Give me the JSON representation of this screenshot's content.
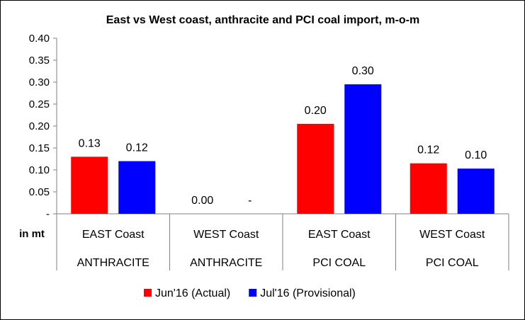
{
  "chart_data": {
    "type": "bar",
    "title": "East vs West coast, anthracite and PCI coal import, m-o-m",
    "ylabel": "in mt",
    "ylim": [
      0,
      0.4
    ],
    "yticks": [
      {
        "value": 0,
        "label": "-"
      },
      {
        "value": 0.05,
        "label": "0.05"
      },
      {
        "value": 0.1,
        "label": "0.10"
      },
      {
        "value": 0.15,
        "label": "0.15"
      },
      {
        "value": 0.2,
        "label": "0.20"
      },
      {
        "value": 0.25,
        "label": "0.25"
      },
      {
        "value": 0.3,
        "label": "0.30"
      },
      {
        "value": 0.35,
        "label": "0.35"
      },
      {
        "value": 0.4,
        "label": "0.40"
      }
    ],
    "categories": [
      {
        "sub": "EAST Coast",
        "group": "ANTHRACITE"
      },
      {
        "sub": "WEST Coast",
        "group": "ANTHRACITE"
      },
      {
        "sub": "EAST Coast",
        "group": "PCI COAL"
      },
      {
        "sub": "WEST Coast",
        "group": "PCI COAL"
      }
    ],
    "series": [
      {
        "name": "Jun'16 (Actual)",
        "color": "#ff0000",
        "values": [
          0.13,
          0.0,
          0.205,
          0.115
        ],
        "labels": [
          "0.13",
          "0.00",
          "0.20",
          "0.12"
        ]
      },
      {
        "name": "Jul'16 (Provisional)",
        "color": "#0000ff",
        "values": [
          0.12,
          0.0,
          0.295,
          0.103
        ],
        "labels": [
          "0.12",
          "-",
          "0.30",
          "0.10"
        ]
      }
    ],
    "grid": false,
    "legend": "bottom-center"
  }
}
